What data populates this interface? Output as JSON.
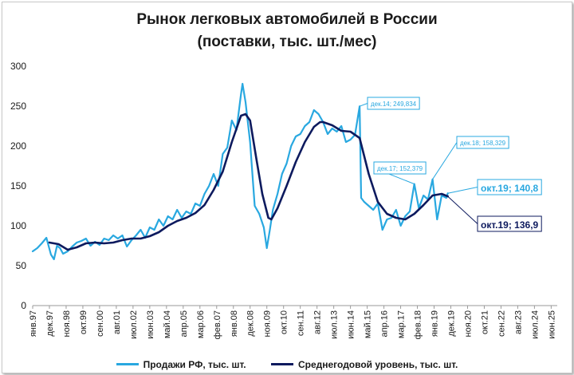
{
  "chart_data": {
    "type": "line",
    "title_line1": "Рынок легковых автомобилей в России",
    "title_line2": "(поставки, тыс. шт./мес)",
    "ylim": [
      0,
      300
    ],
    "yticks": [
      0,
      50,
      100,
      150,
      200,
      250,
      300
    ],
    "xlim": [
      "янв.97",
      "окт.25"
    ],
    "xtick_labels": [
      "янв.97",
      "дек.97",
      "ноя.98",
      "окт.99",
      "сен.00",
      "авг.01",
      "июл.02",
      "июн.03",
      "май.04",
      "апр.05",
      "мар.06",
      "фев.07",
      "янв.08",
      "дек.08",
      "ноя.09",
      "окт.10",
      "сен.11",
      "авг.12",
      "июл.13",
      "июн.14",
      "май.15",
      "апр.16",
      "мар.17",
      "фев.18",
      "янв.19",
      "дек.19",
      "ноя.20",
      "окт.21",
      "сен.22",
      "авг.23",
      "июл.24",
      "июн.25"
    ],
    "grid": false,
    "legend_position": "bottom",
    "series": [
      {
        "name": "Продажи РФ, тыс. шт.",
        "color": "#29a8e0",
        "points": [
          [
            "янв.97",
            68
          ],
          [
            "апр.97",
            72
          ],
          [
            "июл.97",
            78
          ],
          [
            "окт.97",
            85
          ],
          [
            "янв.98",
            64
          ],
          [
            "мар.98",
            58
          ],
          [
            "май.98",
            75
          ],
          [
            "июл.98",
            72
          ],
          [
            "сен.98",
            65
          ],
          [
            "дек.98",
            68
          ],
          [
            "мар.99",
            74
          ],
          [
            "июн.99",
            79
          ],
          [
            "сен.99",
            81
          ],
          [
            "дек.99",
            84
          ],
          [
            "мар.00",
            75
          ],
          [
            "июн.00",
            80
          ],
          [
            "сен.00",
            76
          ],
          [
            "дек.00",
            84
          ],
          [
            "мар.01",
            82
          ],
          [
            "июн.01",
            88
          ],
          [
            "сен.01",
            84
          ],
          [
            "дек.01",
            88
          ],
          [
            "мар.02",
            74
          ],
          [
            "июн.02",
            82
          ],
          [
            "сен.02",
            88
          ],
          [
            "дек.02",
            95
          ],
          [
            "мар.03",
            85
          ],
          [
            "июн.03",
            98
          ],
          [
            "сен.03",
            95
          ],
          [
            "дек.03",
            108
          ],
          [
            "мар.04",
            100
          ],
          [
            "июн.04",
            112
          ],
          [
            "сен.04",
            108
          ],
          [
            "дек.04",
            120
          ],
          [
            "мар.05",
            110
          ],
          [
            "июн.05",
            118
          ],
          [
            "сен.05",
            115
          ],
          [
            "дек.05",
            128
          ],
          [
            "мар.06",
            125
          ],
          [
            "июн.06",
            140
          ],
          [
            "сен.06",
            150
          ],
          [
            "дек.06",
            165
          ],
          [
            "мар.07",
            150
          ],
          [
            "июн.07",
            190
          ],
          [
            "сен.07",
            198
          ],
          [
            "дек.07",
            232
          ],
          [
            "мар.08",
            220
          ],
          [
            "июн.08",
            265
          ],
          [
            "июл.08",
            278
          ],
          [
            "сен.08",
            255
          ],
          [
            "дек.08",
            205
          ],
          [
            "мар.09",
            125
          ],
          [
            "июн.09",
            115
          ],
          [
            "сен.09",
            98
          ],
          [
            "ноя.09",
            72
          ],
          [
            "янв.10",
            95
          ],
          [
            "мар.10",
            120
          ],
          [
            "июн.10",
            140
          ],
          [
            "сен.10",
            165
          ],
          [
            "дек.10",
            178
          ],
          [
            "мар.11",
            200
          ],
          [
            "июн.11",
            212
          ],
          [
            "сен.11",
            215
          ],
          [
            "дек.11",
            225
          ],
          [
            "мар.12",
            230
          ],
          [
            "июн.12",
            245
          ],
          [
            "сен.12",
            240
          ],
          [
            "дек.12",
            230
          ],
          [
            "мар.13",
            215
          ],
          [
            "июн.13",
            222
          ],
          [
            "сен.13",
            218
          ],
          [
            "дек.13",
            225
          ],
          [
            "мар.14",
            205
          ],
          [
            "июн.14",
            208
          ],
          [
            "сен.14",
            214
          ],
          [
            "дек.14",
            249.834
          ],
          [
            "янв.15",
            135
          ],
          [
            "мар.15",
            130
          ],
          [
            "июн.15",
            125
          ],
          [
            "сен.15",
            120
          ],
          [
            "дек.15",
            128
          ],
          [
            "мар.16",
            95
          ],
          [
            "июн.16",
            108
          ],
          [
            "сен.16",
            110
          ],
          [
            "дек.16",
            120
          ],
          [
            "мар.17",
            100
          ],
          [
            "июн.17",
            112
          ],
          [
            "сен.17",
            118
          ],
          [
            "дек.17",
            152.379
          ],
          [
            "мар.18",
            122
          ],
          [
            "июн.18",
            138
          ],
          [
            "сен.18",
            133
          ],
          [
            "дек.18",
            158.329
          ],
          [
            "мар.19",
            108
          ],
          [
            "июн.19",
            138
          ],
          [
            "сен.19",
            135
          ],
          [
            "окт.19",
            140.8
          ]
        ],
        "label_points": [
          "дек.14; 249,834",
          "дек.17; 152,379",
          "дек.18; 158,329",
          "окт.19; 140,8"
        ]
      },
      {
        "name": "Среднегодовой уровень, тыс. шт.",
        "color": "#0d1a5e",
        "points": [
          [
            "дек.97",
            79
          ],
          [
            "июн.98",
            77
          ],
          [
            "дек.98",
            70
          ],
          [
            "июн.99",
            73
          ],
          [
            "дек.99",
            78
          ],
          [
            "июн.00",
            79
          ],
          [
            "дек.00",
            78
          ],
          [
            "июн.01",
            79
          ],
          [
            "дек.01",
            82
          ],
          [
            "июн.02",
            84
          ],
          [
            "дек.02",
            84
          ],
          [
            "июн.03",
            87
          ],
          [
            "дек.03",
            92
          ],
          [
            "июн.04",
            100
          ],
          [
            "дек.04",
            106
          ],
          [
            "июн.05",
            110
          ],
          [
            "дек.05",
            116
          ],
          [
            "июн.06",
            126
          ],
          [
            "дек.06",
            145
          ],
          [
            "июн.07",
            168
          ],
          [
            "дек.07",
            205
          ],
          [
            "июн.08",
            238
          ],
          [
            "сен.08",
            240
          ],
          [
            "дек.08",
            232
          ],
          [
            "апр.09",
            185
          ],
          [
            "авг.09",
            140
          ],
          [
            "дек.09",
            110
          ],
          [
            "фев.10",
            108
          ],
          [
            "июн.10",
            122
          ],
          [
            "дек.10",
            150
          ],
          [
            "июн.11",
            180
          ],
          [
            "дек.11",
            205
          ],
          [
            "июн.12",
            224
          ],
          [
            "окт.12",
            230
          ],
          [
            "дек.12",
            230
          ],
          [
            "июн.13",
            226
          ],
          [
            "дек.13",
            219
          ],
          [
            "июн.14",
            218
          ],
          [
            "дек.14",
            210
          ],
          [
            "июн.15",
            165
          ],
          [
            "дек.15",
            130
          ],
          [
            "июн.16",
            115
          ],
          [
            "дек.16",
            110
          ],
          [
            "июн.17",
            108
          ],
          [
            "дек.17",
            115
          ],
          [
            "июн.18",
            126
          ],
          [
            "дек.18",
            138
          ],
          [
            "июн.19",
            140
          ],
          [
            "окт.19",
            136.9
          ]
        ],
        "label_points": [
          "окт.19;  136,9"
        ]
      }
    ]
  }
}
